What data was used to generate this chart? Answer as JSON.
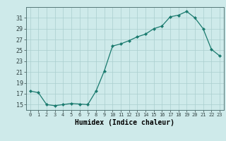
{
  "x": [
    0,
    1,
    2,
    3,
    4,
    5,
    6,
    7,
    8,
    9,
    10,
    11,
    12,
    13,
    14,
    15,
    16,
    17,
    18,
    19,
    20,
    21,
    22,
    23
  ],
  "y": [
    17.5,
    17.2,
    15.0,
    14.8,
    15.0,
    15.2,
    15.1,
    15.0,
    17.5,
    21.2,
    25.8,
    26.2,
    26.8,
    27.5,
    28.0,
    29.0,
    29.5,
    31.2,
    31.5,
    32.2,
    31.0,
    29.0,
    25.2,
    24.0
  ],
  "line_color": "#1a7a6e",
  "marker_color": "#1a7a6e",
  "bg_color": "#ceeaea",
  "grid_color": "#aacece",
  "xlabel": "Humidex (Indice chaleur)",
  "ylim": [
    14,
    33
  ],
  "xlim": [
    -0.5,
    23.5
  ],
  "yticks": [
    15,
    17,
    19,
    21,
    23,
    25,
    27,
    29,
    31
  ],
  "xticks": [
    0,
    1,
    2,
    3,
    4,
    5,
    6,
    7,
    8,
    9,
    10,
    11,
    12,
    13,
    14,
    15,
    16,
    17,
    18,
    19,
    20,
    21,
    22,
    23
  ],
  "xtick_labels": [
    "0",
    "1",
    "2",
    "3",
    "4",
    "5",
    "6",
    "7",
    "8",
    "9",
    "10",
    "11",
    "12",
    "13",
    "14",
    "15",
    "16",
    "17",
    "18",
    "19",
    "20",
    "21",
    "22",
    "23"
  ],
  "xlabel_fontsize": 7,
  "ytick_fontsize": 6,
  "xtick_fontsize": 5
}
